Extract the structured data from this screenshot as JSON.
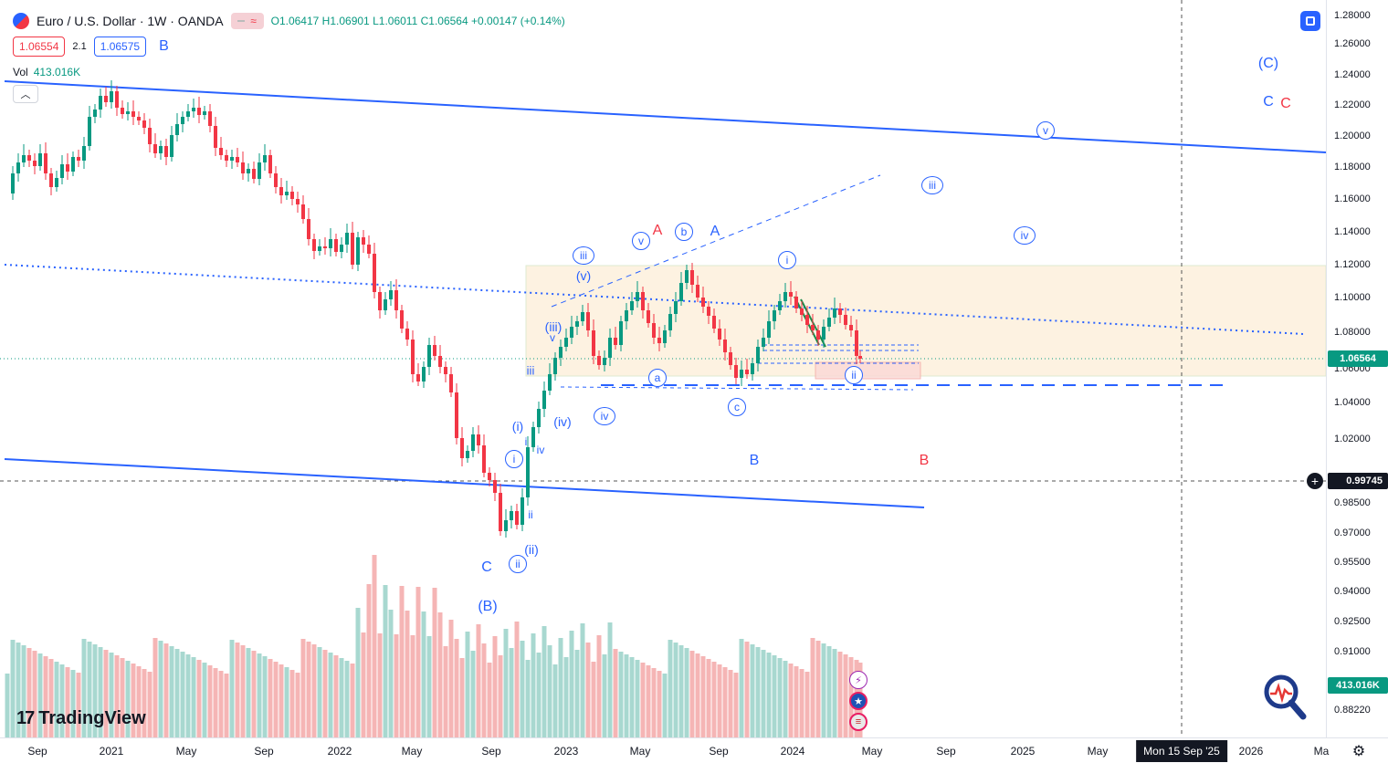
{
  "header": {
    "symbol_title": "Euro / U.S. Dollar · 1W · OANDA",
    "open_label": "O",
    "open": "1.06417",
    "high_label": "H",
    "high": "1.06901",
    "low_label": "L",
    "low": "1.06011",
    "close_label": "C",
    "close": "1.06564",
    "change": "+0.00147 (+0.14%)",
    "bid": "1.06554",
    "spread": "2.1",
    "ask": "1.06575",
    "ask_wave_label": "B",
    "volume_label": "Vol",
    "volume_value": "413.016K"
  },
  "price_axis": {
    "ticks": [
      "1.28000",
      "1.26000",
      "1.24000",
      "1.22000",
      "1.20000",
      "1.18000",
      "1.16000",
      "1.14000",
      "1.12000",
      "1.10000",
      "1.08000",
      "1.06000",
      "1.04000",
      "1.02000",
      "0.98500",
      "0.97000",
      "0.95500",
      "0.94000",
      "0.92500",
      "0.91000",
      "0.89500",
      "0.88220"
    ],
    "current_price": "1.06564",
    "crosshair_price": "0.99745",
    "volume_label": "413.016K"
  },
  "time_axis": {
    "ticks": [
      "Sep",
      "2021",
      "May",
      "Sep",
      "2022",
      "May",
      "Sep",
      "2023",
      "May",
      "Sep",
      "2024",
      "May",
      "Sep",
      "2025",
      "May",
      "2026",
      "Ma"
    ],
    "crosshair_date": "Mon 15 Sep '25"
  },
  "waves": {
    "c_blue_top": "(C)",
    "c_blue": "C",
    "c_red": "C",
    "v_top": "v",
    "iii_right": "iii",
    "iv_right": "iv",
    "a_red": "A",
    "b_circ": "b",
    "a_blue": "A",
    "v_small": "v",
    "iii_circ": "iii",
    "v_paren": "(v)",
    "iii_paren": "(iii)",
    "v_plain": "v",
    "iii_plain": "iii",
    "a_circ": "a",
    "iv_circ": "iv",
    "iv_paren": "(iv)",
    "i_paren": "(i)",
    "i_plain": "i",
    "i_circ": "i",
    "iv_plain": "iv",
    "ii_plain": "ii",
    "ii_paren": "(ii)",
    "ii_circ": "ii",
    "c_bottom": "C",
    "b_paren": "(B)",
    "c_circ": "c",
    "b_blue": "B",
    "b_red": "B",
    "i_circ_2024": "i",
    "ii_circ_2024": "ii"
  },
  "branding": {
    "logo_text": "TradingView"
  },
  "colors": {
    "up": "#089981",
    "down": "#f23645",
    "accent": "#2962ff"
  }
}
